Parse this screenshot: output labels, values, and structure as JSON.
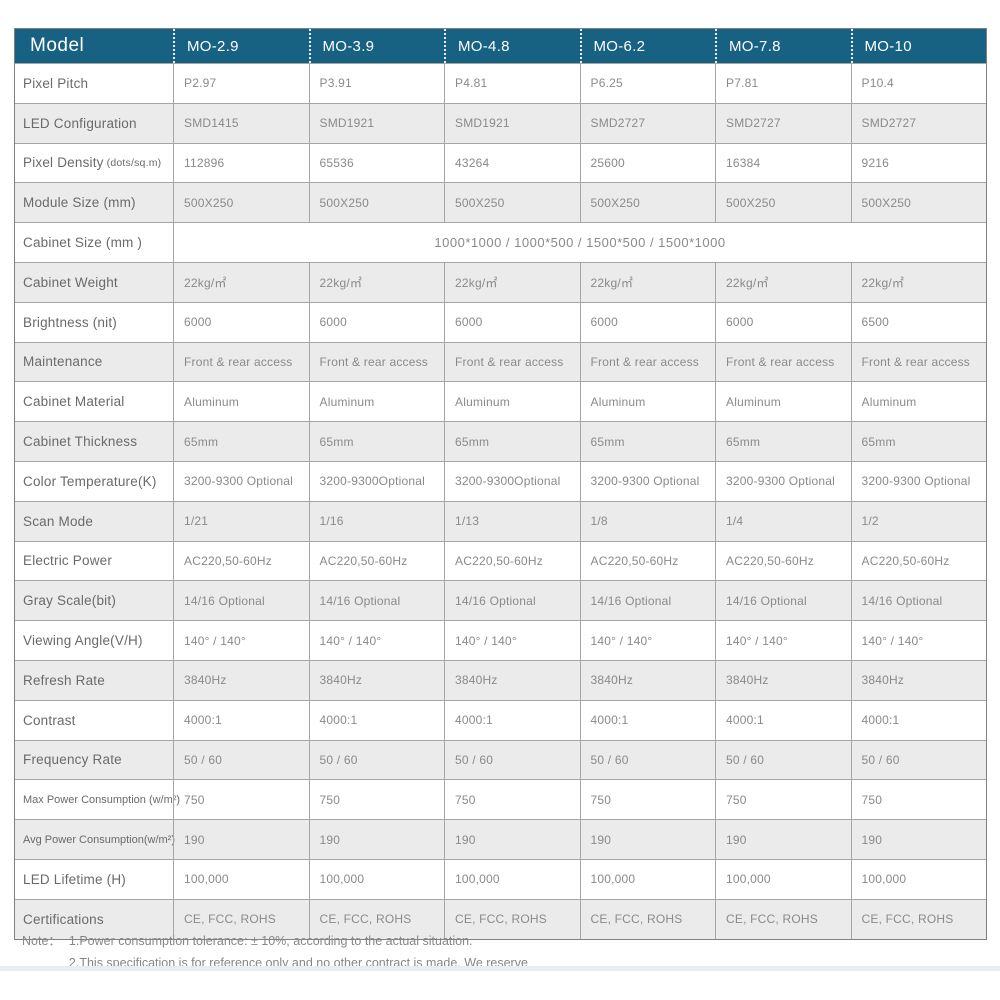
{
  "colors": {
    "header_bg": "#176283",
    "stripe_bg": "#ebebeb",
    "grid_line": "#a5a5a5"
  },
  "header": {
    "model_label": "Model",
    "columns": [
      "MO-2.9",
      "MO-3.9",
      "MO-4.8",
      "MO-6.2",
      "MO-7.8",
      "MO-10"
    ]
  },
  "rows": [
    {
      "label": "Pixel Pitch",
      "values": [
        "P2.97",
        "P3.91",
        "P4.81",
        "P6.25",
        "P7.81",
        "P10.4"
      ]
    },
    {
      "label": "LED Configuration",
      "values": [
        "SMD1415",
        "SMD1921",
        "SMD1921",
        "SMD2727",
        "SMD2727",
        "SMD2727"
      ]
    },
    {
      "label": "Pixel Density",
      "label_suffix": "(dots/sq.m)",
      "values": [
        "112896",
        "65536",
        "43264",
        "25600",
        "16384",
        "9216"
      ]
    },
    {
      "label": "Module Size (mm)",
      "values": [
        "500X250",
        "500X250",
        "500X250",
        "500X250",
        "500X250",
        "500X250"
      ]
    },
    {
      "label": "Cabinet Size (mm )",
      "merged_value": "1000*1000 / 1000*500 / 1500*500 / 1500*1000"
    },
    {
      "label": "Cabinet Weight",
      "values": [
        "22kg/㎡",
        "22kg/㎡",
        "22kg/㎡",
        "22kg/㎡",
        "22kg/㎡",
        "22kg/㎡"
      ]
    },
    {
      "label": "Brightness (nit)",
      "values": [
        "6000",
        "6000",
        "6000",
        "6000",
        "6000",
        "6500"
      ]
    },
    {
      "label": "Maintenance",
      "values": [
        "Front & rear access",
        "Front & rear access",
        "Front & rear access",
        "Front & rear access",
        "Front & rear access",
        "Front & rear access"
      ]
    },
    {
      "label": "Cabinet Material",
      "values": [
        "Aluminum",
        "Aluminum",
        "Aluminum",
        "Aluminum",
        "Aluminum",
        "Aluminum"
      ]
    },
    {
      "label": "Cabinet Thickness",
      "values": [
        "65mm",
        "65mm",
        "65mm",
        "65mm",
        "65mm",
        "65mm"
      ]
    },
    {
      "label": "Color Temperature(K)",
      "values": [
        "3200-9300 Optional",
        "3200-9300Optional",
        "3200-9300Optional",
        "3200-9300 Optional",
        "3200-9300 Optional",
        "3200-9300 Optional"
      ]
    },
    {
      "label": "Scan Mode",
      "values": [
        "1/21",
        "1/16",
        "1/13",
        "1/8",
        "1/4",
        "1/2"
      ]
    },
    {
      "label": "Electric Power",
      "values": [
        "AC220,50-60Hz",
        "AC220,50-60Hz",
        "AC220,50-60Hz",
        "AC220,50-60Hz",
        "AC220,50-60Hz",
        "AC220,50-60Hz"
      ]
    },
    {
      "label": "Gray Scale(bit)",
      "values": [
        "14/16 Optional",
        "14/16 Optional",
        "14/16 Optional",
        "14/16 Optional",
        "14/16 Optional",
        "14/16 Optional"
      ]
    },
    {
      "label": "Viewing Angle(V/H)",
      "values": [
        "140° / 140°",
        "140° / 140°",
        "140° / 140°",
        "140° / 140°",
        "140° / 140°",
        "140° / 140°"
      ]
    },
    {
      "label": "Refresh Rate",
      "values": [
        "3840Hz",
        "3840Hz",
        "3840Hz",
        "3840Hz",
        "3840Hz",
        "3840Hz"
      ]
    },
    {
      "label": "Contrast",
      "values": [
        "4000:1",
        "4000:1",
        "4000:1",
        "4000:1",
        "4000:1",
        "4000:1"
      ]
    },
    {
      "label": "Frequency Rate",
      "values": [
        "50 / 60",
        "50 / 60",
        "50 / 60",
        "50 / 60",
        "50 / 60",
        "50 / 60"
      ]
    },
    {
      "label": "Max Power Consumption (w/m²)",
      "small_label": true,
      "values": [
        "750",
        "750",
        "750",
        "750",
        "750",
        "750"
      ]
    },
    {
      "label": "Avg Power Consumption(w/m²)",
      "small_label": true,
      "values": [
        "190",
        "190",
        "190",
        "190",
        "190",
        "190"
      ]
    },
    {
      "label": "LED Lifetime (H)",
      "values": [
        "100,000",
        "100,000",
        "100,000",
        "100,000",
        "100,000",
        "100,000"
      ]
    },
    {
      "label": "Certifications",
      "values": [
        "CE, FCC, ROHS",
        "CE, FCC, ROHS",
        "CE, FCC, ROHS",
        "CE, FCC, ROHS",
        "CE, FCC, ROHS",
        "CE, FCC, ROHS"
      ]
    }
  ],
  "note": {
    "prefix": "Note：",
    "lines": [
      "1.Power consumption tolerance: ± 10%, according to the actual situation.",
      "2.This specification is for reference only and no other contract is made. We reserve"
    ]
  }
}
